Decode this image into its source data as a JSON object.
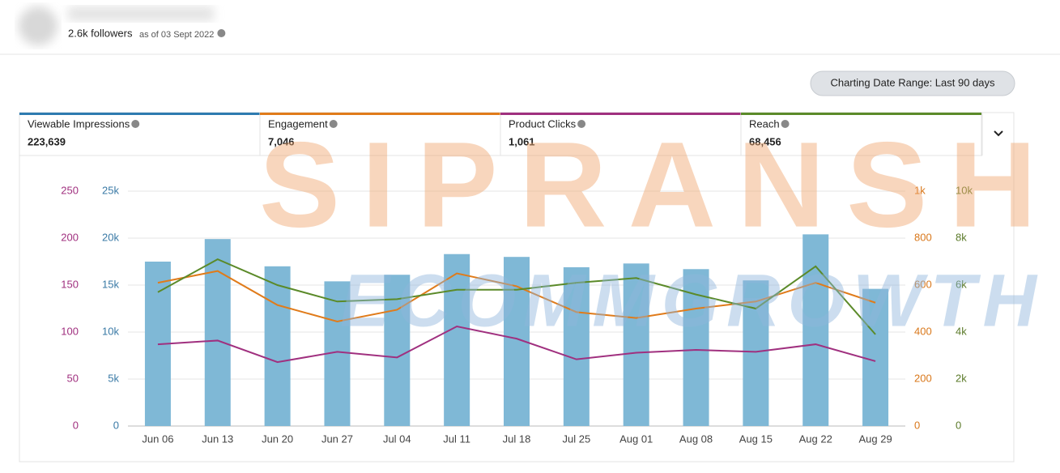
{
  "profile": {
    "followers": "2.6k followers",
    "as_of": "as of 03 Sept 2022"
  },
  "date_range_button": "Charting Date Range: Last 90 days",
  "metrics": [
    {
      "label": "Viewable Impressions",
      "value": "223,639",
      "color": "#2e7bb0"
    },
    {
      "label": "Engagement",
      "value": "7,046",
      "color": "#e07b1a"
    },
    {
      "label": "Product Clicks",
      "value": "1,061",
      "color": "#a0307f"
    },
    {
      "label": "Reach",
      "value": "68,456",
      "color": "#5b8a29"
    }
  ],
  "watermark": {
    "line1": "SIPRANSH",
    "line2": "ECOMMGROWTH"
  },
  "chart_data": {
    "type": "bar-line",
    "categories": [
      "Jun 06",
      "Jun 13",
      "Jun 20",
      "Jun 27",
      "Jul 04",
      "Jul 11",
      "Jul 18",
      "Jul 25",
      "Aug 01",
      "Aug 08",
      "Aug 15",
      "Aug 22",
      "Aug 29"
    ],
    "grid": true,
    "ylim": [
      0,
      25000
    ],
    "yticks": [
      0,
      {
        "value": 5000,
        "label": "5k"
      },
      {
        "value": 10000,
        "label": "10k"
      },
      {
        "value": 15000,
        "label": "15k"
      },
      {
        "value": 20000,
        "label": "20k"
      },
      {
        "value": 25000,
        "label": "25k"
      }
    ],
    "y2lim": [
      0,
      1000
    ],
    "y2ticks": [
      0,
      200,
      400,
      600,
      800,
      {
        "value": 1000,
        "label": "1k"
      }
    ],
    "y3lim": [
      0,
      250
    ],
    "y3ticks": [
      0,
      50,
      100,
      150,
      200,
      250
    ],
    "y4lim": [
      0,
      10000
    ],
    "y4ticks": [
      0,
      {
        "value": 2000,
        "label": "2k"
      },
      {
        "value": 4000,
        "label": "4k"
      },
      {
        "value": 6000,
        "label": "6k"
      },
      {
        "value": 8000,
        "label": "8k"
      },
      {
        "value": 10000,
        "label": "10k"
      }
    ],
    "series": [
      {
        "name": "Viewable Impressions",
        "kind": "bar",
        "axis": "y",
        "color": "#7fb8d6",
        "tick_color": "#3a7aa6",
        "values": [
          17500,
          19900,
          17000,
          15400,
          16100,
          18300,
          18000,
          16900,
          17300,
          16700,
          15500,
          20400,
          14600
        ]
      },
      {
        "name": "Engagement",
        "kind": "line",
        "axis": "y2",
        "color": "#e07b1a",
        "tick_color": "#d9771a",
        "values": [
          610,
          660,
          515,
          445,
          495,
          650,
          595,
          485,
          460,
          500,
          530,
          610,
          525
        ]
      },
      {
        "name": "Product Clicks",
        "kind": "line",
        "axis": "y3",
        "color": "#a0307f",
        "tick_color": "#a0307f",
        "values": [
          87,
          91,
          68,
          79,
          73,
          106,
          93,
          71,
          78,
          81,
          79,
          87,
          69
        ]
      },
      {
        "name": "Reach",
        "kind": "line",
        "axis": "y4",
        "color": "#5b8a29",
        "tick_color": "#5b7a29",
        "values": [
          5700,
          7100,
          6000,
          5300,
          5400,
          5800,
          5800,
          6100,
          6300,
          5600,
          5000,
          6800,
          3900
        ]
      }
    ]
  }
}
